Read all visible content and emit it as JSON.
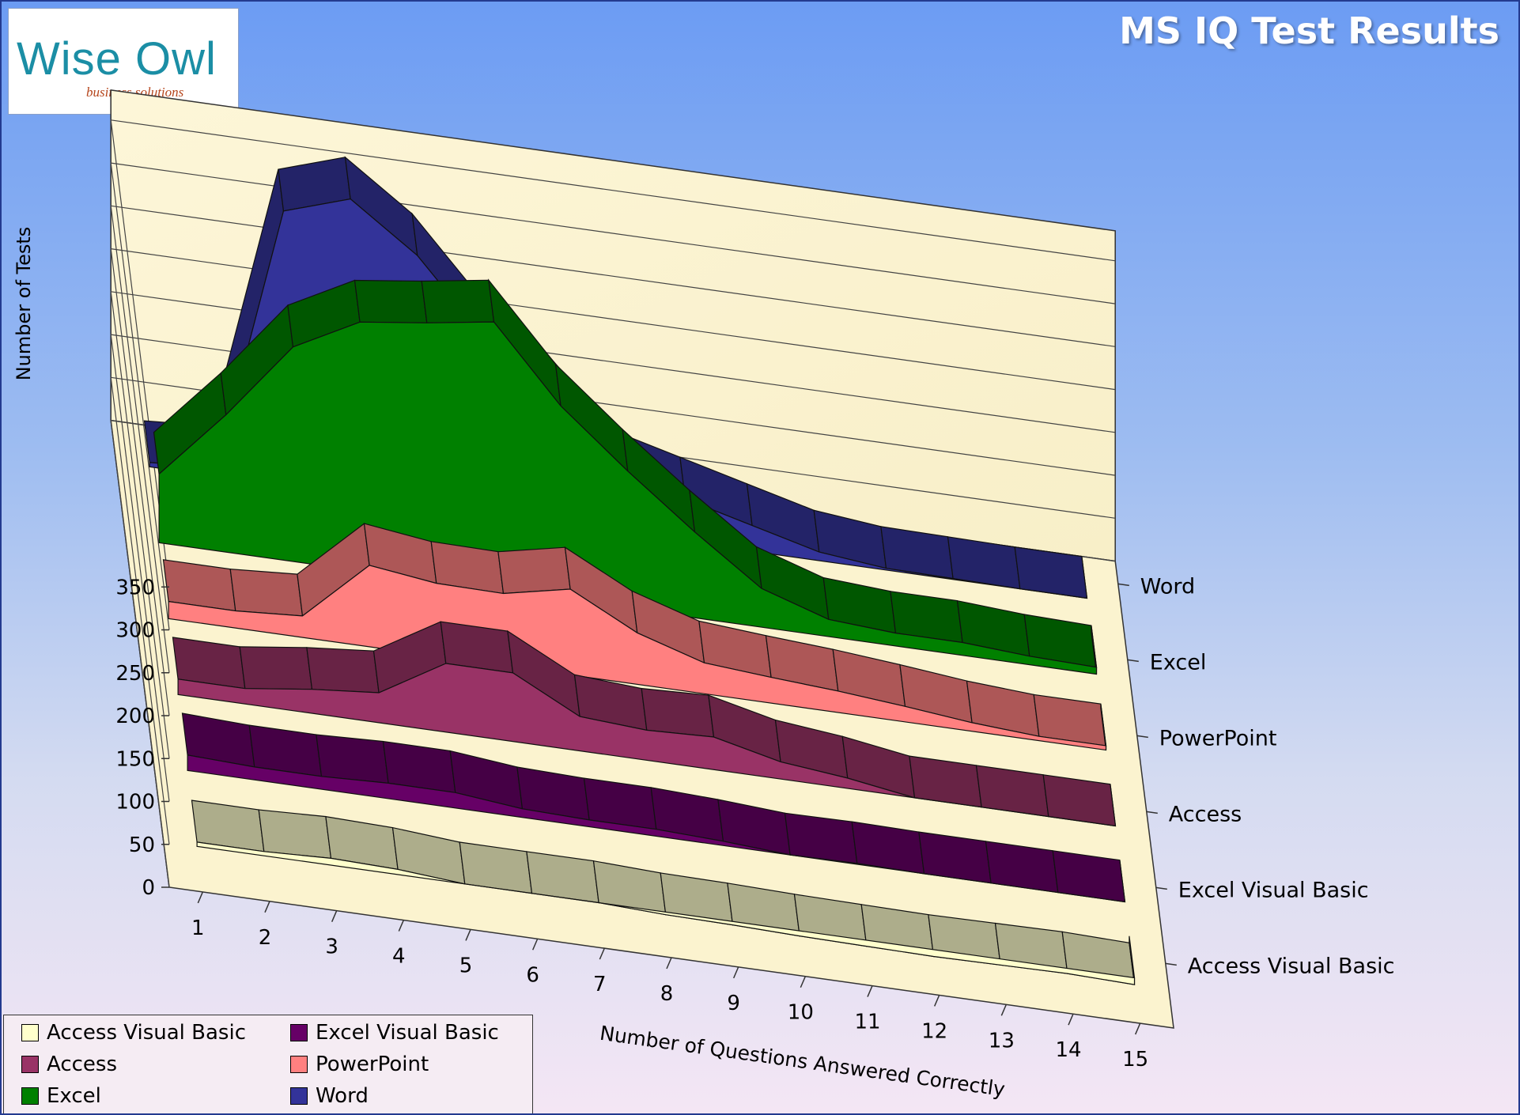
{
  "logo": {
    "word": "Wise Owl",
    "tagline": "business solutions"
  },
  "title": "MS IQ Test Results",
  "chart_data": {
    "type": "area",
    "title": "MS IQ Test Results",
    "xlabel": "Number of Questions Answered Correctly",
    "ylabel": "Number of Tests",
    "categories": [
      "1",
      "2",
      "3",
      "4",
      "5",
      "6",
      "7",
      "8",
      "9",
      "10",
      "11",
      "12",
      "13",
      "14",
      "15"
    ],
    "ylim": [
      0,
      350
    ],
    "yticks": [
      "0",
      "50",
      "100",
      "150",
      "200",
      "250",
      "300",
      "350"
    ],
    "grid": true,
    "legend_position": "bottom-left",
    "series": [
      {
        "name": "Access Visual Basic",
        "color": "#ffffcc",
        "values": [
          5,
          5,
          8,
          6,
          0,
          0,
          0,
          -3,
          -4,
          -6,
          -7,
          -8,
          -7,
          -6,
          -8
        ]
      },
      {
        "name": "Excel Visual Basic",
        "color": "#660066",
        "values": [
          18,
          15,
          15,
          18,
          18,
          10,
          8,
          8,
          5,
          0,
          1,
          0,
          0,
          0,
          0
        ]
      },
      {
        "name": "Access",
        "color": "#993366",
        "values": [
          18,
          18,
          28,
          35,
          80,
          80,
          40,
          35,
          38,
          20,
          12,
          0,
          0,
          0,
          0
        ]
      },
      {
        "name": "PowerPoint",
        "color": "#ff8080",
        "values": [
          20,
          20,
          25,
          95,
          85,
          84,
          100,
          60,
          36,
          30,
          25,
          18,
          10,
          5,
          5
        ]
      },
      {
        "name": "Excel",
        "color": "#008000",
        "values": [
          80,
          160,
          250,
          290,
          300,
          312,
          225,
          160,
          100,
          45,
          20,
          15,
          15,
          10,
          8
        ]
      },
      {
        "name": "Word",
        "color": "#333399",
        "values": [
          5,
          10,
          320,
          345,
          290,
          205,
          150,
          70,
          50,
          30,
          10,
          2,
          1,
          0,
          0
        ]
      }
    ]
  }
}
